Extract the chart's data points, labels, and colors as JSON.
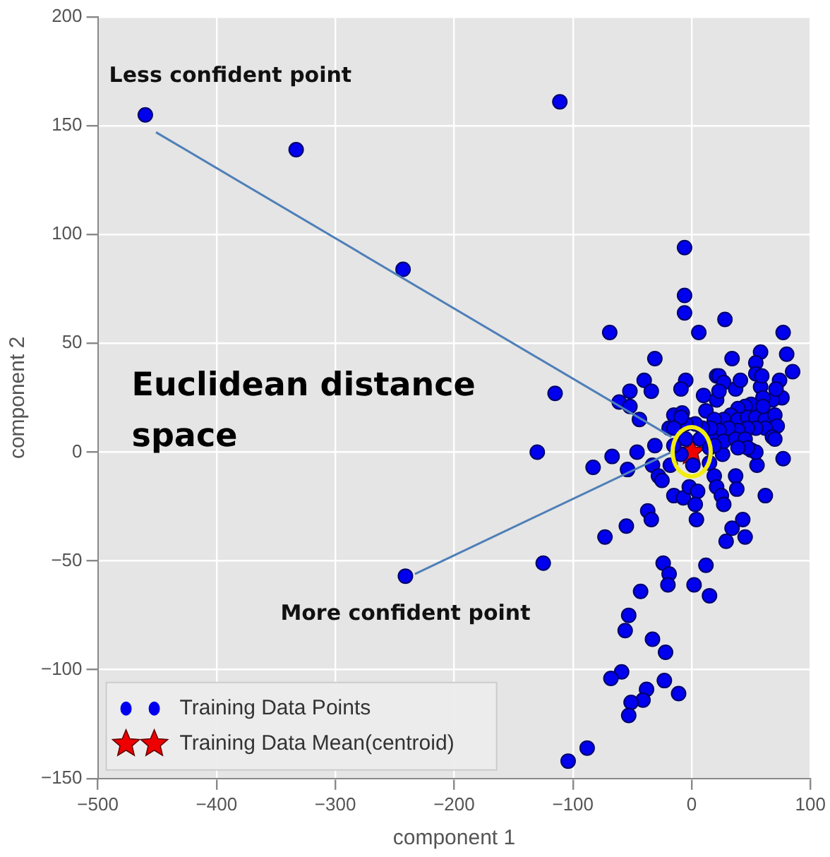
{
  "chart_data": {
    "type": "scatter",
    "xlabel": "component 1",
    "ylabel": "component 2",
    "xlim": [
      -500,
      100
    ],
    "ylim": [
      -150,
      200
    ],
    "xticks": [
      -500,
      -400,
      -300,
      -200,
      -100,
      0,
      100
    ],
    "yticks": [
      -150,
      -100,
      -50,
      0,
      50,
      100,
      150,
      200
    ],
    "grid": true,
    "legend": "bottom left",
    "annotations": [
      {
        "text": "Less confident point",
        "x": -460,
        "y": 155
      },
      {
        "text": "More confident point",
        "x": -241,
        "y": -57
      },
      "Euclidean distance space"
    ],
    "series": [
      {
        "type": "line",
        "color": "#4f7fb8",
        "line_style": "solid",
        "marker": "none",
        "x": [
          -451,
          -17
        ],
        "values": [
          147,
          7
        ]
      },
      {
        "type": "line",
        "color": "#4f7fb8",
        "line_style": "solid",
        "marker": "none",
        "x": [
          -233,
          -17
        ],
        "values": [
          -56,
          0
        ]
      },
      {
        "name": "Training Data Points",
        "marker": "circle",
        "color": "#0000ee",
        "x": [
          -460,
          -333,
          -243,
          -111,
          -130,
          -115,
          -125,
          -241,
          -6,
          -6,
          -6,
          28,
          -69,
          6,
          77,
          -31,
          34,
          58,
          80,
          85,
          54,
          -40,
          -52,
          -34,
          -5,
          -9,
          21,
          -61,
          -52,
          -44,
          10,
          21,
          12,
          -15,
          -8,
          -19,
          -31,
          -9,
          -67,
          -46,
          -83,
          -54,
          -33,
          -28,
          -25,
          -18,
          1,
          15,
          26,
          19,
          21,
          37,
          38,
          55,
          50,
          77,
          62,
          25,
          27,
          -15,
          -7,
          -2,
          5,
          3,
          4,
          -37,
          -34,
          -55,
          -73,
          34,
          43,
          23,
          27,
          23,
          37,
          41,
          54,
          58,
          74,
          76,
          68,
          60,
          50,
          45,
          39,
          33,
          27,
          19,
          39,
          47,
          54,
          62,
          70,
          72,
          62,
          54,
          47,
          39,
          31,
          23,
          17,
          27,
          37,
          45,
          68,
          70,
          16,
          9,
          3,
          -5,
          7,
          15,
          19,
          54,
          47,
          39,
          -9,
          -15,
          -5,
          -15,
          59,
          71,
          60,
          29,
          45,
          -24,
          -19,
          -20,
          12,
          2,
          15,
          -43,
          -53,
          -56,
          -33,
          -22,
          -59,
          -68,
          -23,
          -11,
          -38,
          -41,
          -51,
          -53,
          -88,
          -104
        ],
        "values": [
          155,
          139,
          84,
          161,
          0,
          27,
          -51,
          -57,
          94,
          72,
          64,
          61,
          55,
          55,
          55,
          43,
          43,
          46,
          45,
          37,
          41,
          33,
          28,
          28,
          33,
          29,
          35,
          23,
          21,
          15,
          26,
          24,
          19,
          17,
          18,
          11,
          3,
          -1,
          -2,
          0,
          -7,
          -8,
          -6,
          -11,
          -13,
          -6,
          -6,
          -5,
          -1,
          -11,
          -16,
          -11,
          -17,
          -6,
          1,
          -3,
          -20,
          -20,
          -24,
          -20,
          -21,
          -16,
          -18,
          -24,
          -31,
          -27,
          -31,
          -34,
          -39,
          -35,
          -31,
          35,
          32,
          28,
          29,
          33,
          36,
          30,
          33,
          25,
          24,
          25,
          22,
          21,
          20,
          17,
          15,
          15,
          15,
          16,
          16,
          15,
          17,
          12,
          11,
          11,
          11,
          10,
          11,
          10,
          6,
          5,
          6,
          6,
          7,
          6,
          11,
          11,
          13,
          13,
          6,
          2,
          3,
          0,
          2,
          2,
          16,
          11,
          6,
          3,
          35,
          29,
          21,
          -41,
          -39,
          -51,
          -56,
          -61,
          -52,
          -61,
          -66,
          -64,
          -75,
          -82,
          -86,
          -92,
          -101,
          -104,
          -105,
          -111,
          -109,
          -114,
          -115,
          -121,
          -136,
          -142
        ]
      },
      {
        "name": "Training Data Mean(centroid)",
        "marker": "star",
        "color": "#ee0000",
        "x": [
          0
        ],
        "values": [
          0
        ]
      }
    ]
  }
}
